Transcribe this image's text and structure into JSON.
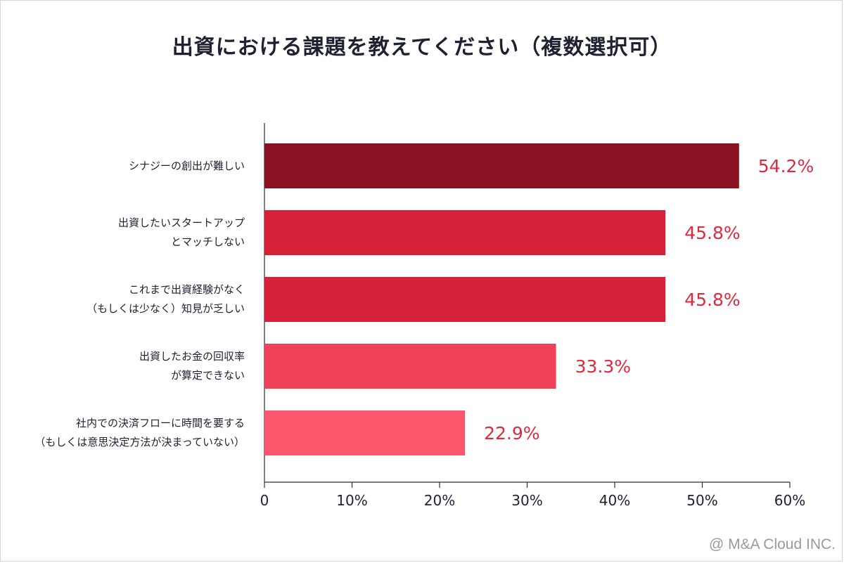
{
  "chart_data": {
    "type": "bar",
    "orientation": "horizontal",
    "title": "出資における課題を教えてください（複数選択可）",
    "categories": [
      [
        "シナジーの創出が難しい"
      ],
      [
        "出資したいスタートアップ",
        "とマッチしない"
      ],
      [
        "これまで出資経験がなく",
        "（もしくは少なく）知見が乏しい"
      ],
      [
        "出資したお金の回収率",
        "が算定できない"
      ],
      [
        "社内での決済フローに時間を要する",
        "（もしくは意思決定方法が決まっていない）"
      ]
    ],
    "values": [
      54.2,
      45.8,
      45.8,
      33.3,
      22.9
    ],
    "value_labels": [
      "54.2%",
      "45.8%",
      "45.8%",
      "33.3%",
      "22.9%"
    ],
    "bar_colors": [
      "#8a1222",
      "#d42138",
      "#d42138",
      "#ef4158",
      "#fb566c"
    ],
    "value_label_color": "#e0283f",
    "xlim": [
      0,
      60
    ],
    "xticks": [
      "0",
      "10%",
      "20%",
      "30%",
      "40%",
      "50%",
      "60%"
    ],
    "xtick_values": [
      0,
      10,
      20,
      30,
      40,
      50,
      60
    ],
    "grid": false,
    "xlabel": "",
    "ylabel": ""
  },
  "footer": {
    "credit": "@ M&A Cloud INC."
  }
}
